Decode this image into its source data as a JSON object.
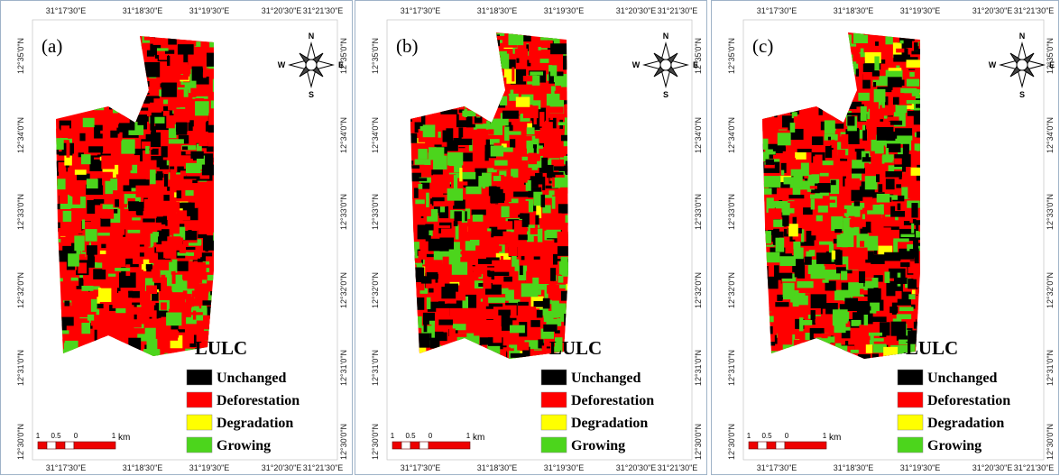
{
  "panels": [
    {
      "label": "(a)"
    },
    {
      "label": "(b)"
    },
    {
      "label": "(c)"
    }
  ],
  "longitude_labels": [
    "31°17'30\"E",
    "31°18'30\"E",
    "31°19'30\"E",
    "31°20'30\"E",
    "31°21'30\"E"
  ],
  "latitude_labels": [
    "12°35'0\"N",
    "12°34'0\"N",
    "12°33'0\"N",
    "12°32'0\"N",
    "12°31'0\"N",
    "12°30'0\"N"
  ],
  "compass": {
    "north": "N",
    "east": "E",
    "south": "S",
    "west": "W"
  },
  "legend": {
    "title": "LULC",
    "items": [
      {
        "label": "Unchanged",
        "color": "#000000"
      },
      {
        "label": "Deforestation",
        "color": "#ff0000"
      },
      {
        "label": "Degradation",
        "color": "#ffff00"
      },
      {
        "label": "Growing",
        "color": "#4cd51c"
      }
    ]
  },
  "scale_bar": {
    "labels": [
      "1",
      "0.5",
      "0",
      "1"
    ],
    "unit": "km"
  }
}
